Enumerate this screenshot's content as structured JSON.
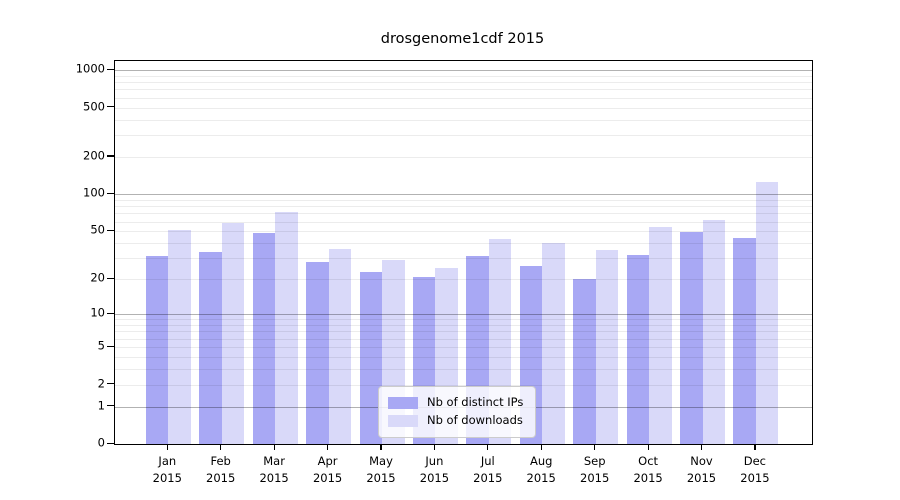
{
  "title": "drosgenome1cdf 2015",
  "chart_data": {
    "type": "bar",
    "title": "drosgenome1cdf 2015",
    "categories": [
      "Jan",
      "Feb",
      "Mar",
      "Apr",
      "May",
      "Jun",
      "Jul",
      "Aug",
      "Sep",
      "Oct",
      "Nov",
      "Dec"
    ],
    "category_year": "2015",
    "series": [
      {
        "name": "Nb of distinct IPs",
        "color": "#a8a8f4",
        "values": [
          31,
          34,
          48,
          28,
          23,
          21,
          31,
          26,
          20,
          32,
          49,
          44
        ]
      },
      {
        "name": "Nb of downloads",
        "color": "#d9d9f9",
        "values": [
          51,
          58,
          72,
          36,
          29,
          25,
          43,
          40,
          35,
          54,
          62,
          126
        ]
      }
    ],
    "scale": "log1p",
    "ylim": [
      0,
      1000
    ],
    "y_ticks": [
      0,
      1,
      2,
      5,
      10,
      20,
      50,
      100,
      200,
      500,
      1000
    ],
    "y_major_gridlines": [
      1,
      10,
      100,
      1000
    ],
    "y_minor_gridlines": [
      2,
      3,
      4,
      5,
      6,
      7,
      8,
      9,
      20,
      30,
      40,
      50,
      60,
      70,
      80,
      90,
      200,
      300,
      400,
      500,
      600,
      700,
      800,
      900
    ],
    "grid": true,
    "legend_position": "lower center"
  },
  "colors": {
    "background": "#ffffff",
    "spine": "#000000",
    "major_grid": "#b5b5b5",
    "minor_grid": "#ebebeb",
    "bar_ips": "#a8a8f4",
    "bar_downloads": "#d9d9f9",
    "text": "#000000"
  }
}
